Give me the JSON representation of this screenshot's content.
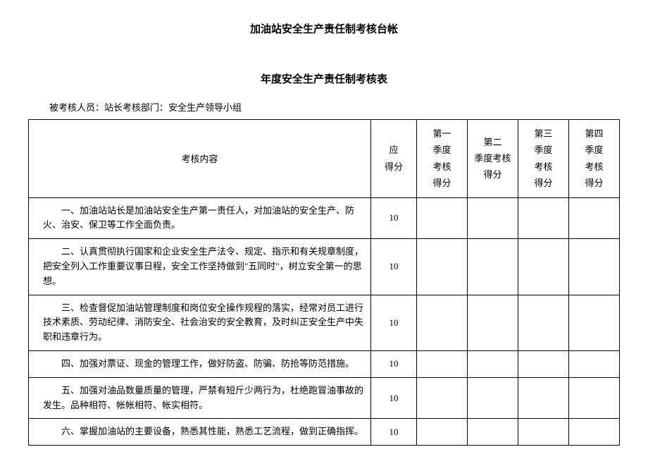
{
  "main_title": "加油站安全生产责任制考核台帐",
  "sub_title": "年度安全生产责任制考核表",
  "meta_line": "被考核人员：站长考核部门：安全生产领导小组",
  "headers": {
    "content": "考核内容",
    "should_score": "应\n得分",
    "q1": "第一\n季度\n考核\n得分",
    "q2": "第二\n季度考核\n得分",
    "q3": "第三\n季度\n考核\n得分",
    "q4": "第四\n季度\n考核\n得分"
  },
  "rows": [
    {
      "content": "一、加油站站长是加油站安全生产第一责任人，对加油站的安全生产、防火、治安、保卫等工作全面负责。",
      "score": "10"
    },
    {
      "content": "二、认真贯彻执行国家和企业安全生产法令、规定、指示和有关规章制度，把安全列入工作重要议事日程，安全工作坚持做到\"五同时\"，树立安全第一的思想。",
      "score": "10"
    },
    {
      "content": "三、检查督促加油站管理制度和岗位安全操作规程的落实，经常对员工进行技术素质、劳动纪律、消防安全、社会治安的安全教育，及时纠正安全生产中失职和违章行为。",
      "score": "10"
    },
    {
      "content": "四、加强对票证、现金的管理工作，做好防盗、防骗、防抢等防范措施。",
      "score": "10"
    },
    {
      "content": "五、加强对油品数量质量的管理，严禁有短斤少两行为，杜绝跑冒油事故的发生。品种相符、帐帐相符、帐实相符。",
      "score": "10"
    },
    {
      "content": "六、掌握加油站的主要设备，熟悉其性能，熟悉工艺流程，做到正确指挥。",
      "score": "10"
    }
  ],
  "colors": {
    "background": "#ffffff",
    "text": "#000000",
    "border": "#000000"
  },
  "typography": {
    "title_fontsize": 15,
    "body_fontsize": 13,
    "font_family": "SimSun"
  },
  "table_layout": {
    "content_col_width": "auto",
    "score_col_width": 65,
    "quarter_col_width": 72
  }
}
